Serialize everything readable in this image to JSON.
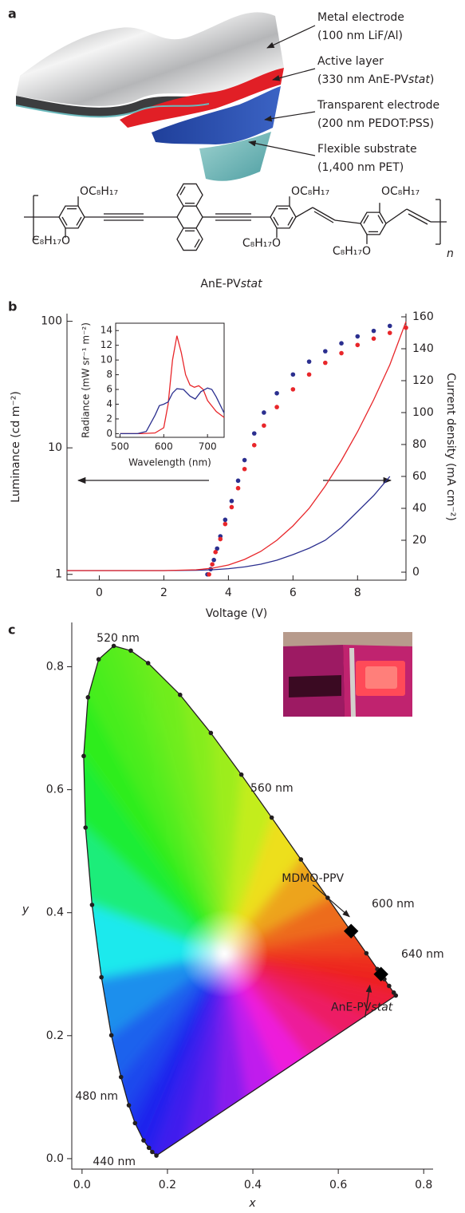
{
  "panel_a": {
    "label": "a",
    "layers": [
      {
        "name": "Metal electrode",
        "detail": "(100 nm LiF/Al)"
      },
      {
        "name": "Active layer",
        "detail": "(330 nm AnE-PVstat)"
      },
      {
        "name": "Transparent electrode",
        "detail": "(200 nm PEDOT:PSS)"
      },
      {
        "name": "Flexible substrate",
        "detail": "(1,400 nm PET)"
      }
    ],
    "structure": {
      "substituents": [
        "OC₈H₁₇",
        "C₈H₁₇O",
        "OC₈H₁₇",
        "C₈H₁₇O",
        "OC₈H₁₇",
        "C₈H₁₇O"
      ],
      "repeat": "n",
      "name": "AnE-PVstat"
    }
  },
  "chart_data": [
    {
      "type": "combo",
      "panel_label": "b",
      "xlabel": "Voltage (V)",
      "ylabel": "Luminance (cd m⁻²)",
      "y2label": "Current density (mA cm⁻²)",
      "xlim": [
        -1,
        9.5
      ],
      "xticks": [
        0,
        2,
        4,
        6,
        8
      ],
      "ylim": [
        0.9,
        115
      ],
      "yticks": [
        1,
        10,
        100
      ],
      "log_y": true,
      "y2lim": [
        -5,
        162
      ],
      "y2ticks": [
        0,
        20,
        40,
        60,
        80,
        100,
        120,
        140,
        160
      ],
      "series": [
        {
          "kind": "markers",
          "color": "#2b2f8f",
          "x": [
            3.35,
            3.45,
            3.55,
            3.65,
            3.75,
            3.9,
            4.1,
            4.3,
            4.5,
            4.8,
            5.1,
            5.5,
            6.0,
            6.5,
            7.0,
            7.5,
            8.0,
            8.5,
            9.0
          ],
          "values": [
            1.0,
            1.1,
            1.3,
            1.6,
            2.0,
            2.7,
            3.8,
            5.5,
            8,
            13,
            19,
            27,
            38,
            48,
            58,
            67,
            76,
            84,
            92
          ]
        },
        {
          "kind": "markers",
          "color": "#e8262a",
          "x": [
            3.4,
            3.5,
            3.6,
            3.75,
            3.9,
            4.1,
            4.3,
            4.5,
            4.8,
            5.1,
            5.5,
            6.0,
            6.5,
            7.0,
            7.5,
            8.0,
            8.5,
            9.0,
            9.5
          ],
          "values": [
            1.0,
            1.2,
            1.5,
            1.9,
            2.5,
            3.4,
            4.8,
            6.8,
            10.5,
            15,
            21,
            29,
            38,
            47,
            56,
            65,
            73,
            81,
            89
          ]
        },
        {
          "kind": "line",
          "axis": "y2",
          "color": "#2b2f8f",
          "x": [
            -1,
            0,
            1,
            2,
            3,
            3.5,
            4,
            4.5,
            5,
            5.5,
            6,
            6.5,
            7,
            7.5,
            8,
            8.5,
            9
          ],
          "values": [
            1,
            1,
            1,
            1,
            1.2,
            1.5,
            2.2,
            3.3,
            5,
            7.5,
            11,
            15,
            20,
            28,
            38,
            48,
            60
          ]
        },
        {
          "kind": "line",
          "axis": "y2",
          "color": "#e8262a",
          "x": [
            -1,
            0,
            1,
            2,
            3,
            3.5,
            4,
            4.5,
            5,
            5.5,
            6,
            6.5,
            7,
            7.5,
            8,
            8.5,
            9,
            9.5
          ],
          "values": [
            1,
            1,
            1,
            1,
            1.5,
            2.5,
            4.5,
            8,
            13,
            20,
            29,
            40,
            54,
            70,
            88,
            108,
            130,
            157
          ]
        }
      ]
    },
    {
      "type": "line",
      "xlabel": "Wavelength (nm)",
      "ylabel": "Radiance (mW sr⁻¹ m⁻²)",
      "xlim": [
        490,
        738
      ],
      "xticks": [
        500,
        600,
        700
      ],
      "ylim": [
        -0.5,
        15
      ],
      "yticks": [
        0,
        2,
        4,
        6,
        8,
        10,
        12,
        14
      ],
      "series": [
        {
          "color": "#e8262a",
          "x": [
            500,
            550,
            580,
            600,
            610,
            620,
            630,
            640,
            650,
            660,
            670,
            680,
            690,
            700,
            720,
            738
          ],
          "values": [
            0,
            0,
            0.1,
            0.8,
            4,
            10,
            13.3,
            11,
            8,
            6.6,
            6.3,
            6.5,
            6,
            4.5,
            3,
            2.2
          ]
        },
        {
          "color": "#2b2f8f",
          "x": [
            500,
            540,
            560,
            580,
            590,
            600,
            610,
            620,
            630,
            645,
            660,
            672,
            685,
            700,
            710,
            720,
            738
          ],
          "values": [
            0,
            0,
            0.3,
            2.5,
            3.8,
            4,
            4.3,
            5.5,
            6.1,
            6,
            5.1,
            4.7,
            5.7,
            6.2,
            6,
            5,
            2.8
          ]
        }
      ]
    },
    {
      "type": "scatter",
      "panel_label": "c",
      "xlabel": "x",
      "ylabel": "y",
      "xlim": [
        -0.024,
        0.822
      ],
      "xticks": [
        {
          "value": 0,
          "label": "0.0"
        },
        0.2,
        0.4,
        0.6,
        0.8
      ],
      "ylim": [
        -0.017,
        0.872
      ],
      "yticks": [
        {
          "value": 0,
          "label": "0.0"
        },
        0.2,
        0.4,
        0.6,
        0.8
      ],
      "locus": {
        "x": [
          0.1741,
          0.1644,
          0.1566,
          0.144,
          0.1241,
          0.1096,
          0.0913,
          0.0687,
          0.0454,
          0.0235,
          0.0082,
          0.0039,
          0.0139,
          0.0389,
          0.0743,
          0.1142,
          0.1547,
          0.2296,
          0.3016,
          0.3731,
          0.4441,
          0.5125,
          0.5752,
          0.627,
          0.6658,
          0.6915,
          0.7079,
          0.719,
          0.73,
          0.7347
        ],
        "y": [
          0.005,
          0.0109,
          0.0177,
          0.0297,
          0.0578,
          0.0868,
          0.1327,
          0.2007,
          0.295,
          0.4127,
          0.5384,
          0.6548,
          0.7502,
          0.812,
          0.8338,
          0.8262,
          0.8059,
          0.7543,
          0.6923,
          0.6245,
          0.5547,
          0.4866,
          0.4242,
          0.3725,
          0.334,
          0.3083,
          0.292,
          0.2809,
          0.27,
          0.2653
        ]
      },
      "wavelength_labels": [
        "520 nm",
        "560 nm",
        "600 nm",
        "640 nm",
        "480 nm",
        "440 nm"
      ],
      "marker": "diamond",
      "color": "#000000",
      "series": [
        {
          "name": "MDMO-PPV",
          "x": [
            0.63
          ],
          "values": [
            0.37
          ]
        },
        {
          "name": "AnE-PVstat",
          "x": [
            0.7
          ],
          "values": [
            0.3
          ]
        }
      ]
    }
  ]
}
